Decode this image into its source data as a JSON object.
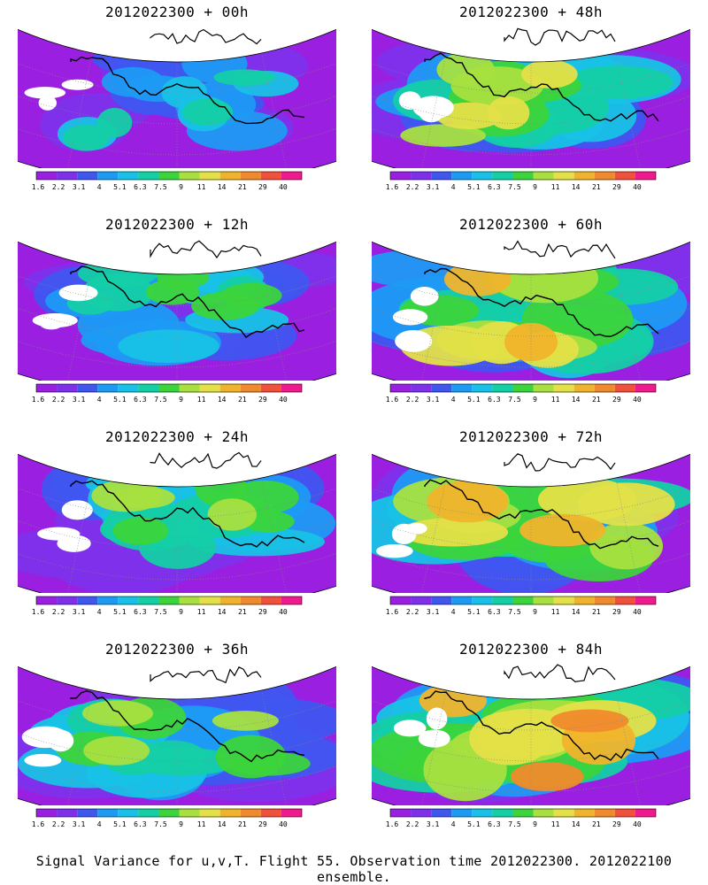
{
  "panels": [
    {
      "title": "2012022300 + 00h",
      "intensity": 0.25
    },
    {
      "title": "2012022300 + 48h",
      "intensity": 0.6
    },
    {
      "title": "2012022300 + 12h",
      "intensity": 0.38
    },
    {
      "title": "2012022300 + 60h",
      "intensity": 0.7
    },
    {
      "title": "2012022300 + 24h",
      "intensity": 0.48
    },
    {
      "title": "2012022300 + 72h",
      "intensity": 0.8
    },
    {
      "title": "2012022300 + 36h",
      "intensity": 0.55
    },
    {
      "title": "2012022300 + 84h",
      "intensity": 0.85
    }
  ],
  "colorbar": {
    "labels": [
      "1.6",
      "2.2",
      "3.1",
      "4",
      "5.1",
      "6.3",
      "7.5",
      "9",
      "11",
      "14",
      "21",
      "29",
      "40"
    ],
    "colors": [
      "#9b1fe0",
      "#7e30ea",
      "#3f56f0",
      "#1d9af4",
      "#18c2e6",
      "#14cfa6",
      "#3bd43b",
      "#a8e040",
      "#e4e048",
      "#f0b42c",
      "#f08a2c",
      "#f0503c",
      "#f01a8c"
    ]
  },
  "caption": "Signal Variance for u,v,T. Flight 55. Observation time 2012022300. 2012022100 ensemble."
}
